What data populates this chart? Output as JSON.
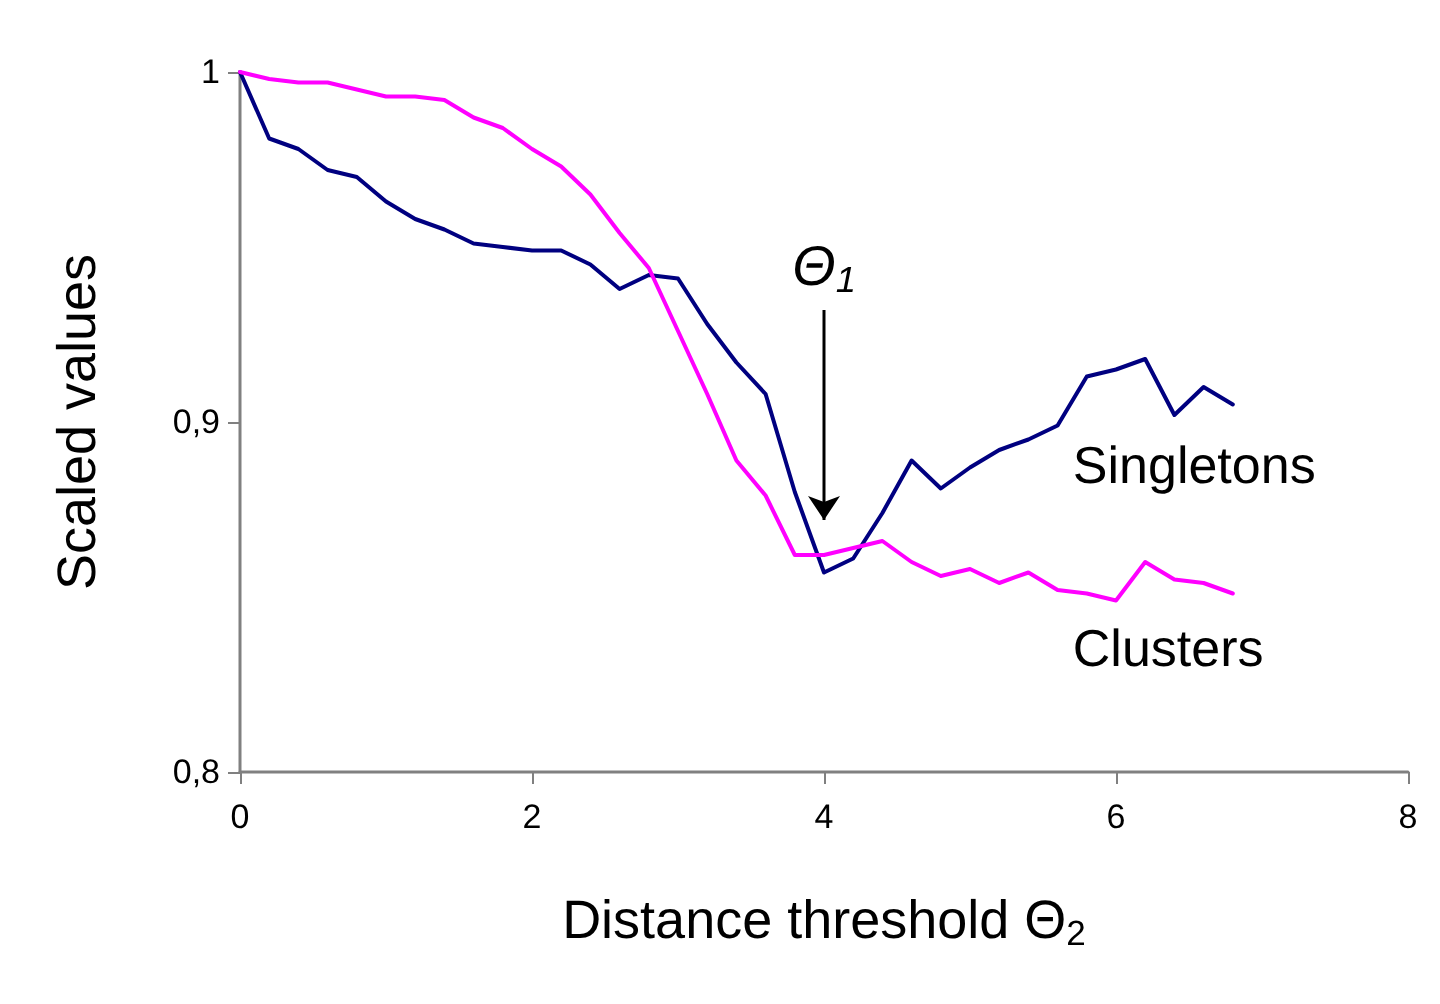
{
  "chart_data": {
    "type": "line",
    "xlabel": "Distance threshold Θ$_{2}$",
    "ylabel": "Scaled values",
    "x": [
      0,
      0.2,
      0.4,
      0.6,
      0.8,
      1,
      1.2,
      1.4,
      1.6,
      1.8,
      2,
      2.2,
      2.4,
      2.6,
      2.8,
      3,
      3.2,
      3.4,
      3.6,
      3.8,
      4,
      4.2,
      4.4,
      4.6,
      4.8,
      5,
      5.2,
      5.4,
      5.6,
      5.8,
      6,
      6.2,
      6.4,
      6.6,
      6.8
    ],
    "series": [
      {
        "name": "Singletons",
        "color": "#000080",
        "values": [
          1,
          0.981,
          0.978,
          0.972,
          0.97,
          0.963,
          0.958,
          0.955,
          0.951,
          0.95,
          0.949,
          0.949,
          0.945,
          0.938,
          0.942,
          0.941,
          0.928,
          0.917,
          0.908,
          0.88,
          0.857,
          0.861,
          0.874,
          0.889,
          0.881,
          0.887,
          0.892,
          0.895,
          0.899,
          0.913,
          0.915,
          0.918,
          0.902,
          0.91,
          0.905
        ]
      },
      {
        "name": "Clusters",
        "color": "#ff00ff",
        "values": [
          1,
          0.998,
          0.997,
          0.997,
          0.995,
          0.993,
          0.993,
          0.992,
          0.987,
          0.984,
          0.978,
          0.973,
          0.965,
          0.954,
          0.944,
          0.926,
          0.908,
          0.889,
          0.879,
          0.862,
          0.862,
          0.864,
          0.866,
          0.86,
          0.856,
          0.858,
          0.854,
          0.857,
          0.852,
          0.851,
          0.849,
          0.86,
          0.855,
          0.854,
          0.851
        ]
      }
    ],
    "xlim": [
      0,
      8
    ],
    "xticks": [
      0,
      2,
      4,
      6,
      8
    ],
    "ylim": [
      0.8,
      1
    ],
    "yticks": [
      {
        "value": 0.8,
        "label": "0,8"
      },
      {
        "value": 0.9,
        "label": "0,9"
      },
      {
        "value": 1,
        "label": "1"
      }
    ],
    "annotations": [
      "Θ$_{1}$"
    ],
    "grid": false,
    "legend": false,
    "marker": "none",
    "line_style": "solid"
  }
}
